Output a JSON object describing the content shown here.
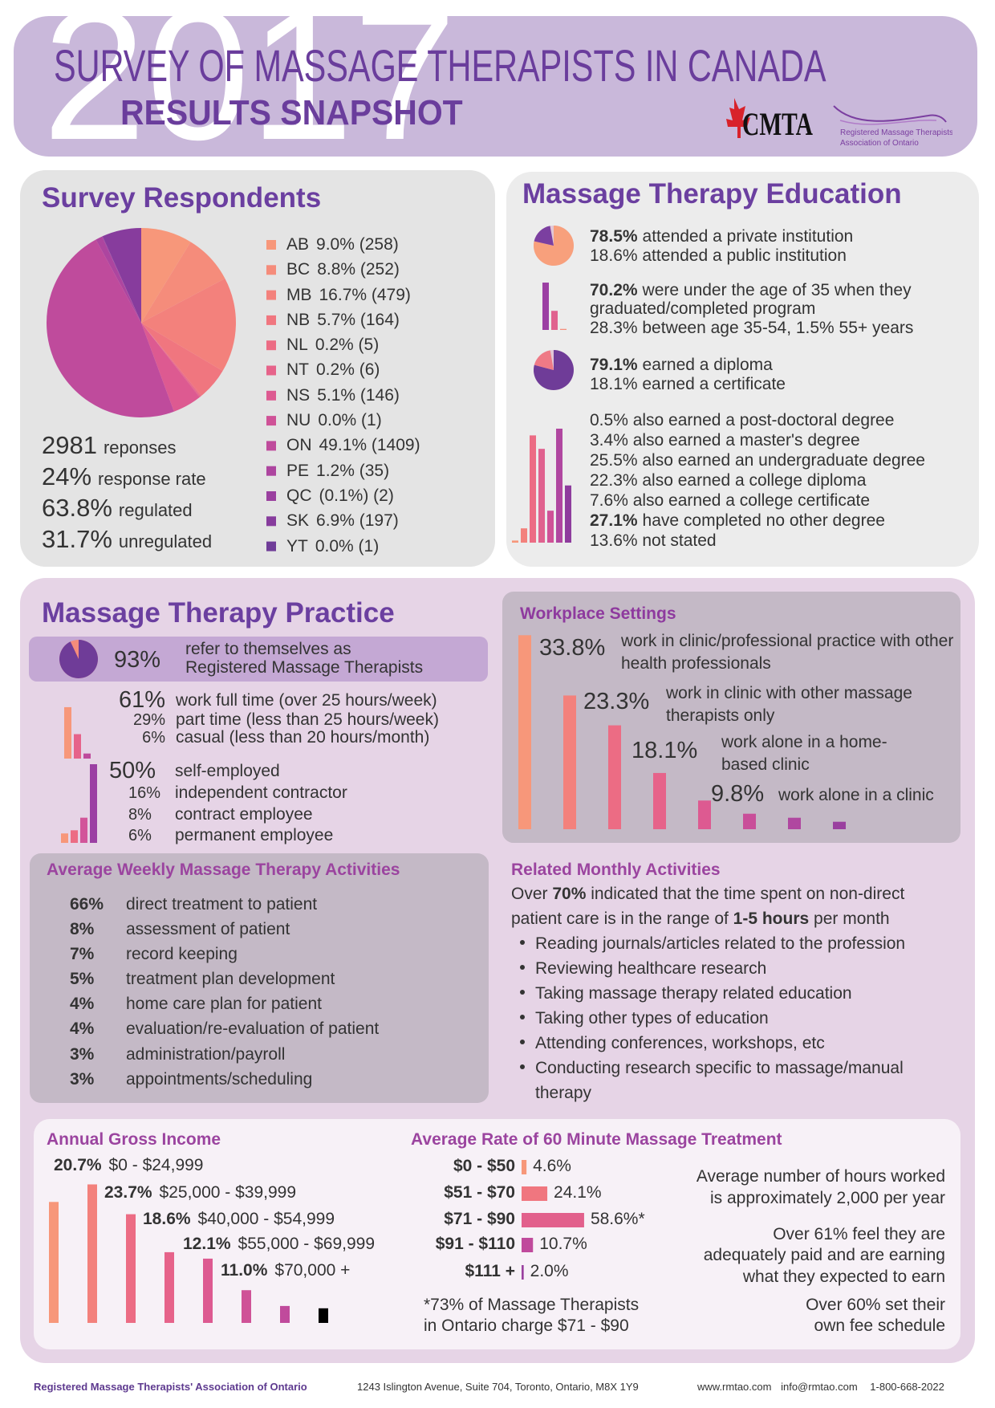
{
  "header": {
    "year": "2017",
    "title": "SURVEY OF MASSAGE THERAPISTS IN CANADA",
    "subtitle": "RESULTS SNAPSHOT",
    "logo_cmta": "CMTA",
    "logo_rmtao": [
      "Registered Massage Therapists'",
      "Association of Ontario"
    ]
  },
  "respondents": {
    "title": "Survey Respondents",
    "colors": [
      "#f7977a",
      "#f58c7b",
      "#f3817c",
      "#f0767f",
      "#ec6c84",
      "#e6638a",
      "#dd5a91",
      "#cf5297",
      "#bf4b9c",
      "#ad459f",
      "#9a409f",
      "#873c9d",
      "#6f3c98"
    ],
    "provinces": [
      {
        "code": "AB",
        "label": "9.0% (258)",
        "value": 9.0
      },
      {
        "code": "BC",
        "label": "8.8% (252)",
        "value": 8.8
      },
      {
        "code": "MB",
        "label": "16.7% (479)",
        "value": 16.7
      },
      {
        "code": "NB",
        "label": "5.7% (164)",
        "value": 5.7
      },
      {
        "code": "NL",
        "label": "0.2% (5)",
        "value": 0.2
      },
      {
        "code": "NT",
        "label": "0.2% (6)",
        "value": 0.2
      },
      {
        "code": "NS",
        "label": "5.1% (146)",
        "value": 5.1
      },
      {
        "code": "NU",
        "label": "0.0% (1)",
        "value": 0.0
      },
      {
        "code": "ON",
        "label": "49.1% (1409)",
        "value": 49.1
      },
      {
        "code": "PE",
        "label": "1.2% (35)",
        "value": 1.2
      },
      {
        "code": "QC",
        "label": "(0.1%) (2)",
        "value": 0.1
      },
      {
        "code": "SK",
        "label": "6.9% (197)",
        "value": 6.9
      },
      {
        "code": "YT",
        "label": "0.0% (1)",
        "value": 0.0
      }
    ],
    "stats": [
      {
        "number": "2981",
        "label": "reponses"
      },
      {
        "number": "24%",
        "label": "response rate"
      },
      {
        "number": "63.8%",
        "label": "regulated"
      },
      {
        "number": "31.7%",
        "label": "unregulated"
      }
    ]
  },
  "education": {
    "title": "Massage Therapy Education",
    "items": [
      {
        "icon": "pie",
        "colors": [
          "#f8a07c",
          "#7b3fa0"
        ],
        "lines": [
          {
            "bold": "78.5%",
            "text": "attended a private institution",
            "values": [
              78.5
            ]
          },
          {
            "text": "18.6% attended a public institution",
            "values": [
              18.6
            ]
          }
        ]
      },
      {
        "icon": "bars",
        "colors": [
          "#9b3fa3",
          "#e0628f",
          "#f58c7b"
        ],
        "lines": [
          {
            "bold": "70.2%",
            "text": "were under the age of 35 when they graduated/completed program",
            "values": [
              70.2
            ]
          },
          {
            "text": "28.3% between age 35-54, 1.5% 55+ years",
            "values": [
              28.3,
              1.5
            ]
          }
        ]
      },
      {
        "icon": "pie",
        "colors": [
          "#6f3c98",
          "#ef7a86"
        ],
        "lines": [
          {
            "bold": "79.1%",
            "text": "earned a diploma",
            "values": [
              79.1
            ]
          },
          {
            "text": "18.1% earned a certificate",
            "values": [
              18.1
            ]
          }
        ]
      },
      {
        "icon": "bars",
        "colors": [
          "#f7977a",
          "#f3817c",
          "#ec6c84",
          "#e0628f",
          "#cf5297",
          "#b047a0",
          "#8e3c9d"
        ],
        "lines": [
          {
            "text": "0.5% also earned a post-doctoral degree",
            "values": [
              0.5
            ]
          },
          {
            "text": "3.4% also earned a master's degree",
            "values": [
              3.4
            ]
          },
          {
            "text": "25.5% also earned an undergraduate degree",
            "values": [
              25.5
            ]
          },
          {
            "text": "22.3% also earned a college diploma",
            "values": [
              22.3
            ]
          },
          {
            "text": "7.6% also earned a college certificate",
            "values": [
              7.6
            ]
          },
          {
            "bold": "27.1%",
            "text": "have completed no other degree",
            "values": [
              27.1
            ]
          },
          {
            "text": "13.6% not stated",
            "values": [
              13.6
            ]
          }
        ]
      }
    ]
  },
  "practice": {
    "title": "Massage Therapy Practice",
    "rmt": {
      "value": 93,
      "pct": "93%",
      "lines": [
        "refer to themselves as",
        "Registered Massage Therapists"
      ],
      "colors": [
        "#6f3c98",
        "#f58c7b"
      ]
    },
    "work_colors": [
      "#f7977a",
      "#e6638a",
      "#bf4b9c"
    ],
    "work": [
      {
        "value": 61,
        "pct": "61%",
        "text": "work full time (over 25 hours/week)"
      },
      {
        "value": 29,
        "pct": "29%",
        "text": "part time (less than 25 hours/week)"
      },
      {
        "value": 6,
        "pct": "6%",
        "text": "casual (less than 20 hours/month)"
      }
    ],
    "employment_colors": [
      "#9b3fa3",
      "#d2559a",
      "#ec6c84",
      "#f7977a"
    ],
    "employment": [
      {
        "value": 50,
        "pct": "50%",
        "text": "self-employed"
      },
      {
        "value": 16,
        "pct": "16%",
        "text": "independent contractor"
      },
      {
        "value": 8,
        "pct": "8%",
        "text": "contract employee"
      },
      {
        "value": 6,
        "pct": "6%",
        "text": "permanent employee"
      }
    ]
  },
  "workplace": {
    "title": "Workplace Settings",
    "colors": [
      "#f7977a",
      "#f3817c",
      "#ec6c84",
      "#e6638a",
      "#dd5a91",
      "#c94e99",
      "#b047a0",
      "#9a409f"
    ],
    "items": [
      {
        "value": 33.8,
        "pct": "33.8%",
        "text": "work in clinic/professional practice with other health professionals"
      },
      {
        "value": 23.3,
        "pct": "23.3%",
        "text": "work in clinic with other massage therapists only"
      },
      {
        "value": 18.1,
        "pct": "18.1%",
        "text": "work alone in a home-based clinic"
      },
      {
        "value": 9.8,
        "pct": "9.8%",
        "text": "work alone in a clinic"
      }
    ],
    "other_bars": [
      5.0,
      2.7,
      2.0,
      1.3
    ]
  },
  "activities": {
    "title": "Average Weekly Massage Therapy Activities",
    "items": [
      {
        "pct": "66%",
        "text": "direct treatment to patient"
      },
      {
        "pct": "8%",
        "text": "assessment of patient"
      },
      {
        "pct": "7%",
        "text": "record keeping"
      },
      {
        "pct": "5%",
        "text": "treatment plan development"
      },
      {
        "pct": "4%",
        "text": "home care plan for patient"
      },
      {
        "pct": "4%",
        "text": "evaluation/re-evaluation of patient"
      },
      {
        "pct": "3%",
        "text": "administration/payroll"
      },
      {
        "pct": "3%",
        "text": "appointments/scheduling"
      }
    ]
  },
  "monthly": {
    "title": "Related Monthly Activities",
    "intro": [
      {
        "text": "Over "
      },
      {
        "text": "70%",
        "bold": true
      },
      {
        "text": " indicated that the time spent on non-direct patient care is in the range of "
      },
      {
        "text": "1-5 hours",
        "bold": true
      },
      {
        "text": " per month"
      }
    ],
    "bullets": [
      "Reading journals/articles related to the profession",
      "Reviewing healthcare research",
      "Taking massage therapy related education",
      "Taking other types of education",
      "Attending conferences, workshops, etc",
      "Conducting research specific to massage/manual therapy"
    ]
  },
  "income": {
    "title": "Annual Gross Income",
    "colors": [
      "#f7977a",
      "#f3817c",
      "#ec6c84",
      "#e6638a",
      "#dd5a91",
      "#cf5297",
      "#c04a9c"
    ],
    "items": [
      {
        "value": 20.7,
        "pct": "20.7%",
        "range": "$0 - $24,999"
      },
      {
        "value": 23.7,
        "pct": "23.7%",
        "range": "$25,000 - $39,999"
      },
      {
        "value": 18.6,
        "pct": "18.6%",
        "range": "$40,000 - $54,999"
      },
      {
        "value": 12.1,
        "pct": "12.1%",
        "range": "$55,000 - $69,999"
      },
      {
        "value": 11.0,
        "pct": "11.0%",
        "range": "$70,000 +"
      }
    ],
    "sub_bars": [
      5.6,
      2.9,
      2.5
    ]
  },
  "rate": {
    "title": "Average Rate of 60 Minute Massage Treatment",
    "colors": [
      "#f7977a",
      "#f0767f",
      "#e2608c",
      "#c04a9c",
      "#9a409f"
    ],
    "items": [
      {
        "range": "$0 - $50",
        "value": 4.6,
        "label": "4.6%"
      },
      {
        "range": "$51 - $70",
        "value": 24.1,
        "label": "24.1%"
      },
      {
        "range": "$71 - $90",
        "value": 58.6,
        "label": "58.6%*"
      },
      {
        "range": "$91 - $110",
        "value": 10.7,
        "label": "10.7%"
      },
      {
        "range": "$111 +",
        "value": 2.0,
        "label": "2.0%"
      }
    ],
    "footnote": [
      "*73% of Massage Therapists",
      "in Ontario charge $71 - $90"
    ]
  },
  "notes": [
    [
      "Average number of hours worked",
      "is approximately 2,000 per year"
    ],
    [
      "Over 61% feel they are",
      "adequately paid and are earning",
      "what they expected to earn"
    ],
    [
      "Over 60% set their",
      "own fee schedule"
    ]
  ],
  "footer": {
    "org": "Registered Massage Therapists' Association of Ontario",
    "address": "1243 Islington Avenue, Suite 704, Toronto, Ontario, M8X 1Y9",
    "contact": [
      "www.rmtao.com",
      "info@rmtao.com",
      "1-800-668-2022"
    ]
  }
}
